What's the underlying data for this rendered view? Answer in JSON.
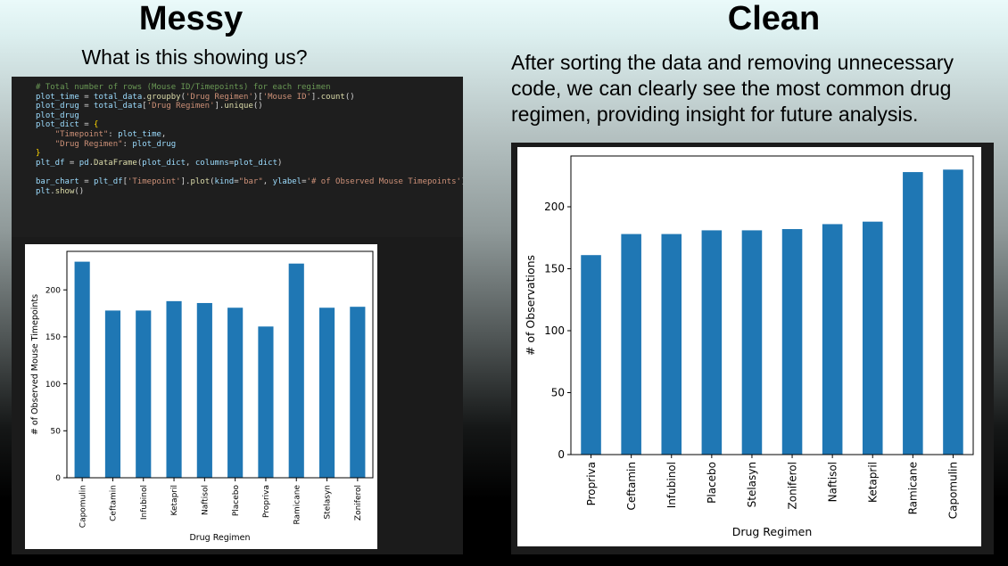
{
  "headings": {
    "messy": "Messy",
    "clean": "Clean"
  },
  "question": "What is this showing us?",
  "clean_description": "After sorting the data and removing unnecessary code, we can clearly see the most common drug regimen, providing insight for future analysis.",
  "code_lines": [
    [
      {
        "t": "# Total number of rows (Mouse ID/Timepoints) for each regimen",
        "c": "comment"
      }
    ],
    [
      {
        "t": "plot_time",
        "c": "var"
      },
      {
        "t": " = ",
        "c": "plain"
      },
      {
        "t": "total_data",
        "c": "var"
      },
      {
        "t": ".",
        "c": "plain"
      },
      {
        "t": "groupby",
        "c": "fn"
      },
      {
        "t": "(",
        "c": "plain"
      },
      {
        "t": "'Drug Regimen'",
        "c": "str"
      },
      {
        "t": ")[",
        "c": "plain"
      },
      {
        "t": "'Mouse ID'",
        "c": "str"
      },
      {
        "t": "].",
        "c": "plain"
      },
      {
        "t": "count",
        "c": "fn"
      },
      {
        "t": "()",
        "c": "plain"
      }
    ],
    [
      {
        "t": "plot_drug",
        "c": "var"
      },
      {
        "t": " = ",
        "c": "plain"
      },
      {
        "t": "total_data",
        "c": "var"
      },
      {
        "t": "[",
        "c": "plain"
      },
      {
        "t": "'Drug Regimen'",
        "c": "str"
      },
      {
        "t": "].",
        "c": "plain"
      },
      {
        "t": "unique",
        "c": "fn"
      },
      {
        "t": "()",
        "c": "plain"
      }
    ],
    [
      {
        "t": "plot_drug",
        "c": "var"
      }
    ],
    [
      {
        "t": "plot_dict",
        "c": "var"
      },
      {
        "t": " = ",
        "c": "plain"
      },
      {
        "t": "{",
        "c": "brace"
      }
    ],
    [
      {
        "t": "    ",
        "c": "plain"
      },
      {
        "t": "\"Timepoint\"",
        "c": "str"
      },
      {
        "t": ": ",
        "c": "plain"
      },
      {
        "t": "plot_time",
        "c": "var"
      },
      {
        "t": ",",
        "c": "plain"
      }
    ],
    [
      {
        "t": "    ",
        "c": "plain"
      },
      {
        "t": "\"Drug Regimen\"",
        "c": "str"
      },
      {
        "t": ": ",
        "c": "plain"
      },
      {
        "t": "plot_drug",
        "c": "var"
      }
    ],
    [
      {
        "t": "}",
        "c": "brace"
      }
    ],
    [
      {
        "t": "plt_df",
        "c": "var"
      },
      {
        "t": " = ",
        "c": "plain"
      },
      {
        "t": "pd",
        "c": "var"
      },
      {
        "t": ".",
        "c": "plain"
      },
      {
        "t": "DataFrame",
        "c": "fn"
      },
      {
        "t": "(",
        "c": "plain"
      },
      {
        "t": "plot_dict",
        "c": "var"
      },
      {
        "t": ", ",
        "c": "plain"
      },
      {
        "t": "columns",
        "c": "var"
      },
      {
        "t": "=",
        "c": "plain"
      },
      {
        "t": "plot_dict",
        "c": "var"
      },
      {
        "t": ")",
        "c": "plain"
      }
    ],
    [
      {
        "t": "",
        "c": "plain"
      }
    ],
    [
      {
        "t": "bar_chart",
        "c": "var"
      },
      {
        "t": " = ",
        "c": "plain"
      },
      {
        "t": "plt_df",
        "c": "var"
      },
      {
        "t": "[",
        "c": "plain"
      },
      {
        "t": "'Timepoint'",
        "c": "str"
      },
      {
        "t": "].",
        "c": "plain"
      },
      {
        "t": "plot",
        "c": "fn"
      },
      {
        "t": "(",
        "c": "plain"
      },
      {
        "t": "kind",
        "c": "var"
      },
      {
        "t": "=",
        "c": "plain"
      },
      {
        "t": "\"bar\"",
        "c": "str"
      },
      {
        "t": ", ",
        "c": "plain"
      },
      {
        "t": "ylabel",
        "c": "var"
      },
      {
        "t": "=",
        "c": "plain"
      },
      {
        "t": "'# of Observed Mouse Timepoints'",
        "c": "str"
      },
      {
        "t": ")",
        "c": "plain"
      }
    ],
    [
      {
        "t": "plt",
        "c": "var"
      },
      {
        "t": ".",
        "c": "plain"
      },
      {
        "t": "show",
        "c": "fn"
      },
      {
        "t": "()",
        "c": "plain"
      }
    ]
  ],
  "colors": {
    "bar": "#1f77b4"
  },
  "chart_data": [
    {
      "type": "bar",
      "title": "",
      "categories": [
        "Capomulin",
        "Ceftamin",
        "Infubinol",
        "Ketapril",
        "Naftisol",
        "Placebo",
        "Propriva",
        "Ramicane",
        "Stelasyn",
        "Zoniferol"
      ],
      "values": [
        230,
        178,
        178,
        188,
        186,
        181,
        161,
        228,
        181,
        182
      ],
      "xlabel": "Drug Regimen",
      "ylabel": "# of Observed Mouse Timepoints",
      "ylim": [
        0,
        241
      ],
      "yticks": [
        0,
        50,
        100,
        150,
        200
      ],
      "grid": false
    },
    {
      "type": "bar",
      "title": "",
      "categories": [
        "Propriva",
        "Ceftamin",
        "Infubinol",
        "Placebo",
        "Stelasyn",
        "Zoniferol",
        "Naftisol",
        "Ketapril",
        "Ramicane",
        "Capomulin"
      ],
      "values": [
        161,
        178,
        178,
        181,
        181,
        182,
        186,
        188,
        228,
        230
      ],
      "xlabel": "Drug Regimen",
      "ylabel": "# of Observations",
      "ylim": [
        0,
        241
      ],
      "yticks": [
        0,
        50,
        100,
        150,
        200
      ],
      "grid": false
    }
  ]
}
